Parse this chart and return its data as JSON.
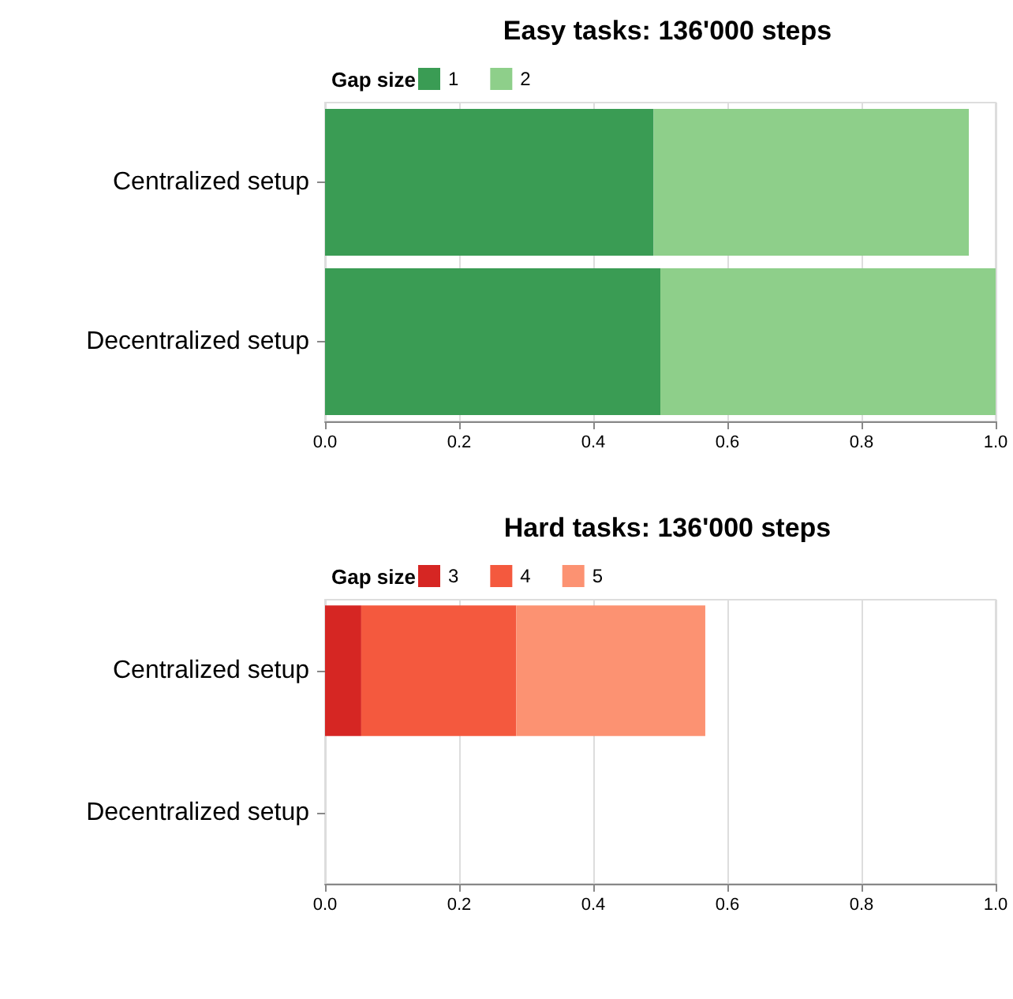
{
  "chart_data": [
    {
      "type": "bar",
      "orientation": "horizontal",
      "stacked": true,
      "title": "Easy tasks: 136'000 steps",
      "legend_title": "Gap size",
      "legend": "top left",
      "grid": "x",
      "categories": [
        "Centralized setup",
        "Decentralized setup"
      ],
      "xlim": [
        0,
        1
      ],
      "xticks": [
        {
          "value": 0,
          "label": "0.0"
        },
        {
          "value": 0.2,
          "label": "0.2"
        },
        {
          "value": 0.4,
          "label": "0.4"
        },
        {
          "value": 0.6,
          "label": "0.6"
        },
        {
          "value": 0.8,
          "label": "0.8"
        },
        {
          "value": 1,
          "label": "1.0"
        }
      ],
      "series": [
        {
          "name": "1",
          "color": "#3a9c54",
          "values": [
            0.49,
            0.5
          ]
        },
        {
          "name": "2",
          "color": "#8ecf8a",
          "values": [
            0.47,
            0.5
          ]
        }
      ]
    },
    {
      "type": "bar",
      "orientation": "horizontal",
      "stacked": true,
      "title": "Hard tasks: 136'000 steps",
      "legend_title": "Gap size",
      "legend": "top left",
      "grid": "x",
      "categories": [
        "Centralized setup",
        "Decentralized setup"
      ],
      "xlim": [
        0,
        1
      ],
      "xticks": [
        {
          "value": 0,
          "label": "0.0"
        },
        {
          "value": 0.2,
          "label": "0.2"
        },
        {
          "value": 0.4,
          "label": "0.4"
        },
        {
          "value": 0.6,
          "label": "0.6"
        },
        {
          "value": 0.8,
          "label": "0.8"
        },
        {
          "value": 1,
          "label": "1.0"
        }
      ],
      "series": [
        {
          "name": "3",
          "color": "#d62623",
          "values": [
            0.054,
            null
          ]
        },
        {
          "name": "4",
          "color": "#f4593e",
          "values": [
            0.231,
            null
          ]
        },
        {
          "name": "5",
          "color": "#fc9272",
          "values": [
            0.282,
            null
          ]
        }
      ]
    }
  ]
}
